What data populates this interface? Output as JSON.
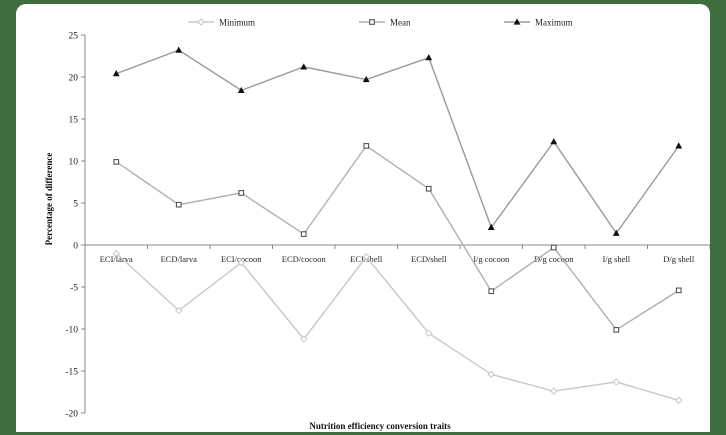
{
  "chart_data": {
    "type": "line",
    "xlabel": "Nutrition efficiency conversion traits",
    "ylabel": "Percentage of difference",
    "ylim": [
      -20,
      25
    ],
    "yticks": [
      25,
      20,
      15,
      10,
      5,
      0,
      -5,
      -10,
      -15,
      -20
    ],
    "grid": false,
    "legend_position": "top",
    "categories": [
      "ECI/larva",
      "ECD/larva",
      "ECI/cocoon",
      "ECD/cocoon",
      "ECI/shell",
      "ECD/shell",
      "I/g cocoon",
      "D/g cocoon",
      "I/g shell",
      "D/g shell"
    ],
    "series": [
      {
        "name": "Minimum",
        "color": "#c8c8c8",
        "marker": "diamond",
        "values": [
          -1.0,
          -7.8,
          -2.1,
          -11.2,
          -1.4,
          -10.5,
          -15.4,
          -17.4,
          -16.3,
          -18.5
        ]
      },
      {
        "name": "Mean",
        "color": "#b0b0b0",
        "marker": "square",
        "values": [
          9.9,
          4.8,
          6.2,
          1.3,
          11.8,
          6.7,
          -5.5,
          -0.3,
          -10.1,
          -5.4
        ]
      },
      {
        "name": "Maximum",
        "color": "#9a9a9a",
        "marker": "triangle",
        "values": [
          20.4,
          23.2,
          18.4,
          21.2,
          19.7,
          22.3,
          2.1,
          12.3,
          1.4,
          11.8
        ]
      }
    ]
  }
}
